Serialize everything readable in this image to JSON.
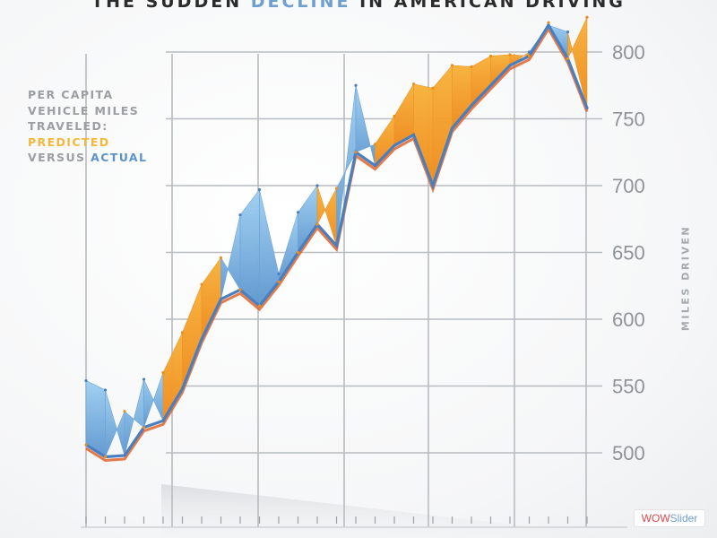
{
  "header": {
    "title_part1": "THE SUDDEN ",
    "title_highlight": "DECLINE",
    "title_part2": " IN AMERICAN DRIVING"
  },
  "legend": {
    "line1": "PER CAPITA",
    "line2": "VEHICLE MILES",
    "line3": "TRAVELED:",
    "predicted": "PREDICTED",
    "versus": "VERSUS ",
    "actual": "ACTUAL"
  },
  "watermark": {
    "part1": "WOW",
    "part2": "Slider"
  },
  "colors": {
    "predicted": "#f5a623",
    "actual": "#8fc3ea",
    "actual_line": "#4a7fbf",
    "predicted_line": "#e0632a",
    "grid": "#b8bcc0"
  },
  "chart_data": {
    "type": "line",
    "title": "THE SUDDEN DECLINE IN AMERICAN DRIVING",
    "ylabel": "MILES DRIVEN",
    "ylim": [
      480,
      830
    ],
    "y_ticks": [
      500,
      550,
      600,
      650,
      700,
      750,
      800
    ],
    "grid": "horizontal and vertical",
    "legend_position": "top-left",
    "series": [
      {
        "name": "PREDICTED",
        "values": [
          506,
          497,
          531,
          519,
          560,
          590,
          626,
          646,
          622,
          610,
          628,
          650,
          671,
          698,
          725,
          731,
          752,
          776,
          773,
          790,
          789,
          797,
          798,
          797,
          822,
          795,
          826
        ]
      },
      {
        "name": "ACTUAL",
        "values": [
          554,
          547,
          498,
          555,
          524,
          548,
          585,
          615,
          678,
          697,
          634,
          680,
          700,
          655,
          775,
          715,
          730,
          738,
          700,
          743,
          760,
          775,
          790,
          800,
          820,
          815,
          758
        ]
      }
    ]
  }
}
